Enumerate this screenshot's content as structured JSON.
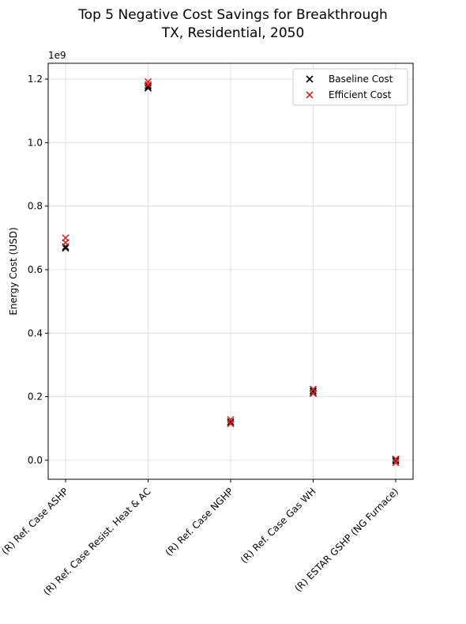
{
  "chart_data": {
    "type": "scatter",
    "title_line1": "Top 5 Negative Cost Savings for Breakthrough",
    "title_line2": "TX, Residential, 2050",
    "xlabel": "",
    "ylabel": "Energy Cost (USD)",
    "y_offset_label": "1e9",
    "y_scale": 1000000000,
    "ylim": [
      -0.06,
      1.25
    ],
    "yticks": [
      0.0,
      0.2,
      0.4,
      0.6,
      0.8,
      1.0,
      1.2
    ],
    "ytick_labels": [
      "0.0",
      "0.2",
      "0.4",
      "0.6",
      "0.8",
      "1.0",
      "1.2"
    ],
    "categories": [
      "(R) Ref. Case ASHP",
      "(R) Ref. Case Resist. Heat & AC",
      "(R) Ref. Case NGHP",
      "(R) Ref. Case Gas WH",
      "(R) ESTAR GSHP (NG Furnace)"
    ],
    "grid": true,
    "legend_position": "upper right",
    "series": [
      {
        "name": "Baseline Cost",
        "color": "#000000",
        "marker": "x",
        "points": [
          {
            "category": 0,
            "y": 0.668
          },
          {
            "category": 0,
            "y": 0.672
          },
          {
            "category": 1,
            "y": 1.172
          },
          {
            "category": 1,
            "y": 1.178
          },
          {
            "category": 2,
            "y": 0.116
          },
          {
            "category": 2,
            "y": 0.121
          },
          {
            "category": 3,
            "y": 0.212
          },
          {
            "category": 3,
            "y": 0.218
          },
          {
            "category": 4,
            "y": -0.002
          },
          {
            "category": 4,
            "y": 0.002
          }
        ]
      },
      {
        "name": "Efficient Cost",
        "color": "#d62728",
        "marker": "x",
        "points": [
          {
            "category": 0,
            "y": 0.7
          },
          {
            "category": 0,
            "y": 0.685
          },
          {
            "category": 1,
            "y": 1.192
          },
          {
            "category": 1,
            "y": 1.183
          },
          {
            "category": 2,
            "y": 0.128
          },
          {
            "category": 2,
            "y": 0.115
          },
          {
            "category": 3,
            "y": 0.224
          },
          {
            "category": 3,
            "y": 0.21
          },
          {
            "category": 4,
            "y": 0.004
          },
          {
            "category": 4,
            "y": -0.008
          }
        ]
      }
    ]
  }
}
